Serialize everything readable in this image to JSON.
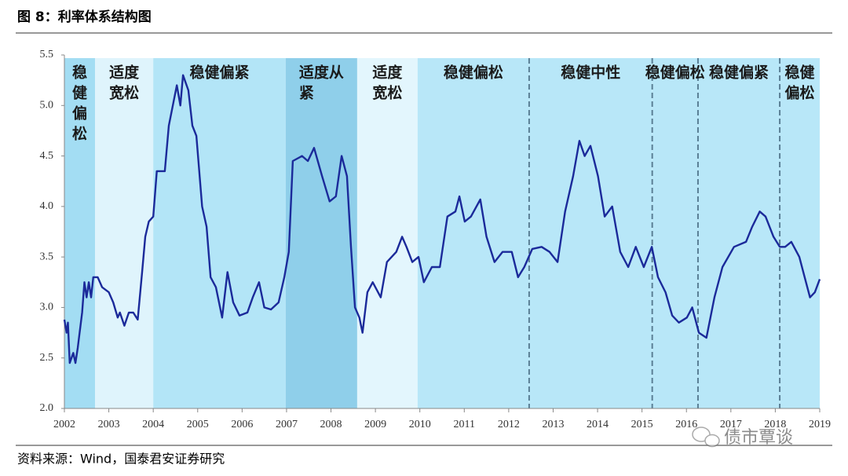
{
  "chart_data": {
    "type": "line",
    "title": "图 8：利率体系结构图",
    "source": "资料来源：Wind，国泰君安证券研究",
    "watermark": "债市覃谈",
    "color": "#1b2a9a",
    "xlim": [
      2002,
      2019
    ],
    "xticks": [
      2002,
      2003,
      2004,
      2005,
      2006,
      2007,
      2008,
      2009,
      2010,
      2011,
      2012,
      2013,
      2014,
      2015,
      2016,
      2017,
      2018,
      2019
    ],
    "ylim": [
      2,
      5.5
    ],
    "yticks": [
      {
        "value": 2,
        "label": "2.0"
      },
      2.5,
      {
        "value": 3,
        "label": "3.0"
      },
      3.5,
      {
        "value": 4,
        "label": "4.0"
      },
      4.5,
      {
        "value": 5,
        "label": "5.0"
      },
      5.5
    ],
    "bands": [
      {
        "start": 2002,
        "end": 2002.69,
        "label": [
          "稳",
          "健",
          "偏",
          "松"
        ],
        "color": "#a3ddf3",
        "border": "none"
      },
      {
        "start": 2002.69,
        "end": 2004,
        "label": [
          "适度",
          "宽松"
        ],
        "color": "#dff4fc",
        "border": "none"
      },
      {
        "start": 2004,
        "end": 2006.98,
        "label": [
          "稳健偏紧"
        ],
        "color": "#b3e5f7",
        "border": "none"
      },
      {
        "start": 2006.98,
        "end": 2008.59,
        "label": [
          "适度从",
          "紧"
        ],
        "color": "#8fcfea",
        "border": "none"
      },
      {
        "start": 2008.59,
        "end": 2009.95,
        "label": [
          "适度",
          "宽松"
        ],
        "color": "#e3f6fd",
        "border": "none"
      },
      {
        "start": 2009.95,
        "end": 2012.46,
        "label": [
          "稳健偏松"
        ],
        "color": "#b8e7f8",
        "border": "none"
      },
      {
        "start": 2012.46,
        "end": 2015.23,
        "label": [
          "稳健中性"
        ],
        "color": "#b8e7f8",
        "border": "dashed"
      },
      {
        "start": 2015.23,
        "end": 2016.26,
        "label": [
          "稳健偏松"
        ],
        "color": "#b8e7f8",
        "border": "dashed"
      },
      {
        "start": 2016.26,
        "end": 2018.1,
        "label": [
          "稳健偏紧"
        ],
        "color": "#b8e7f8",
        "border": "dashed"
      },
      {
        "start": 2018.1,
        "end": 2019,
        "label": [
          "稳健",
          "偏松"
        ],
        "color": "#b8e7f8",
        "border": "dashed"
      }
    ],
    "x": [
      2002,
      2002.05,
      2002.08,
      2002.12,
      2002.2,
      2002.25,
      2002.3,
      2002.4,
      2002.45,
      2002.5,
      2002.55,
      2002.6,
      2002.65,
      2002.75,
      2002.85,
      2003,
      2003.1,
      2003.2,
      2003.25,
      2003.35,
      2003.45,
      2003.55,
      2003.65,
      2003.75,
      2003.82,
      2003.9,
      2004,
      2004.08,
      2004.26,
      2004.35,
      2004.53,
      2004.61,
      2004.67,
      2004.79,
      2004.88,
      2004.97,
      2005.1,
      2005.2,
      2005.29,
      2005.41,
      2005.55,
      2005.67,
      2005.8,
      2005.94,
      2006.12,
      2006.24,
      2006.38,
      2006.5,
      2006.65,
      2006.82,
      2006.95,
      2007.05,
      2007.14,
      2007.35,
      2007.48,
      2007.62,
      2007.8,
      2007.97,
      2008.11,
      2008.24,
      2008.36,
      2008.45,
      2008.54,
      2008.64,
      2008.71,
      2008.82,
      2008.94,
      2009.12,
      2009.26,
      2009.47,
      2009.6,
      2009.7,
      2009.83,
      2009.97,
      2010.09,
      2010.27,
      2010.45,
      2010.62,
      2010.8,
      2010.89,
      2011.01,
      2011.15,
      2011.36,
      2011.5,
      2011.68,
      2011.86,
      2012.07,
      2012.21,
      2012.35,
      2012.53,
      2012.74,
      2012.92,
      2013.1,
      2013.27,
      2013.45,
      2013.59,
      2013.71,
      2013.84,
      2014.01,
      2014.16,
      2014.33,
      2014.51,
      2014.69,
      2014.86,
      2015.04,
      2015.22,
      2015.36,
      2015.53,
      2015.68,
      2015.83,
      2016.01,
      2016.13,
      2016.28,
      2016.45,
      2016.63,
      2016.81,
      2017.07,
      2017.34,
      2017.48,
      2017.65,
      2017.78,
      2017.96,
      2018.1,
      2018.22,
      2018.36,
      2018.54,
      2018.66,
      2018.78,
      2018.89,
      2019
    ],
    "values": [
      2.88,
      2.75,
      2.85,
      2.45,
      2.55,
      2.45,
      2.6,
      2.95,
      3.25,
      3.1,
      3.25,
      3.1,
      3.3,
      3.3,
      3.2,
      3.15,
      3.05,
      2.9,
      2.95,
      2.82,
      2.95,
      2.95,
      2.88,
      3.35,
      3.7,
      3.85,
      3.9,
      4.35,
      4.35,
      4.8,
      5.2,
      5.0,
      5.3,
      5.15,
      4.8,
      4.7,
      4.0,
      3.8,
      3.3,
      3.2,
      2.9,
      3.35,
      3.05,
      2.92,
      2.95,
      3.1,
      3.25,
      3.0,
      2.98,
      3.05,
      3.3,
      3.55,
      4.45,
      4.5,
      4.45,
      4.58,
      4.3,
      4.05,
      4.1,
      4.5,
      4.3,
      3.6,
      3.0,
      2.9,
      2.75,
      3.15,
      3.25,
      3.1,
      3.45,
      3.55,
      3.7,
      3.6,
      3.45,
      3.5,
      3.25,
      3.4,
      3.4,
      3.9,
      3.95,
      4.1,
      3.85,
      3.9,
      4.07,
      3.7,
      3.45,
      3.55,
      3.55,
      3.3,
      3.4,
      3.58,
      3.6,
      3.55,
      3.45,
      3.95,
      4.3,
      4.65,
      4.5,
      4.6,
      4.3,
      3.9,
      4.0,
      3.55,
      3.4,
      3.6,
      3.4,
      3.6,
      3.3,
      3.15,
      2.92,
      2.85,
      2.9,
      3.0,
      2.75,
      2.7,
      3.1,
      3.4,
      3.6,
      3.65,
      3.8,
      3.95,
      3.9,
      3.7,
      3.6,
      3.6,
      3.65,
      3.5,
      3.3,
      3.1,
      3.15,
      3.28
    ]
  }
}
